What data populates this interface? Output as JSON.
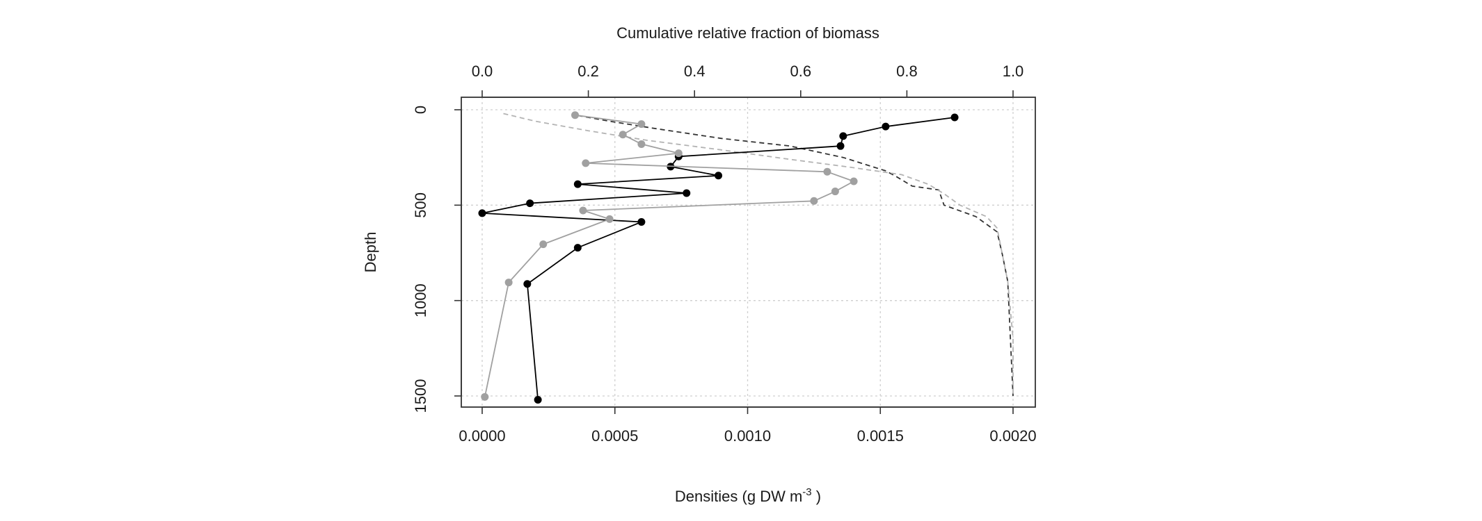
{
  "chart_data": {
    "type": "line",
    "title": "",
    "top_xlabel": "Cumulative relative fraction of biomass",
    "xlabel": "Densities (g DW  m",
    "xlabel_sup": "-3",
    "xlabel_end": " )",
    "ylabel": "Depth",
    "xlim": [
      0,
      0.002
    ],
    "ylim_reversed": [
      0,
      1500
    ],
    "top_xlim": [
      0,
      1
    ],
    "grid": true,
    "x_ticks": [
      {
        "value": 0.0,
        "label": "0.0000"
      },
      {
        "value": 0.0005,
        "label": "0.0005"
      },
      {
        "value": 0.001,
        "label": "0.0010"
      },
      {
        "value": 0.0015,
        "label": "0.0015"
      },
      {
        "value": 0.002,
        "label": "0.0020"
      }
    ],
    "top_ticks": [
      {
        "value": 0.0,
        "label": "0.0"
      },
      {
        "value": 0.2,
        "label": "0.2"
      },
      {
        "value": 0.4,
        "label": "0.4"
      },
      {
        "value": 0.6,
        "label": "0.6"
      },
      {
        "value": 0.8,
        "label": "0.8"
      },
      {
        "value": 1.0,
        "label": "1.0"
      }
    ],
    "y_ticks": [
      {
        "value": 0,
        "label": "0"
      },
      {
        "value": 500,
        "label": "500"
      },
      {
        "value": 1000,
        "label": "1000"
      },
      {
        "value": 1500,
        "label": "1500"
      }
    ],
    "series": [
      {
        "style": "solid-points",
        "color": "#000000",
        "points": [
          [
            0.00178,
            40
          ],
          [
            0.00152,
            88
          ],
          [
            0.00136,
            138
          ],
          [
            0.00135,
            190
          ],
          [
            0.00074,
            245
          ],
          [
            0.00071,
            298
          ],
          [
            0.00089,
            345
          ],
          [
            0.00036,
            390
          ],
          [
            0.00077,
            437
          ],
          [
            0.00018,
            490
          ],
          [
            0.0,
            542
          ],
          [
            0.0006,
            588
          ],
          [
            0.00036,
            723
          ],
          [
            0.00017,
            913
          ],
          [
            0.00021,
            1520
          ]
        ]
      },
      {
        "style": "solid-points",
        "color": "#a0a0a0",
        "points": [
          [
            0.00035,
            28
          ],
          [
            0.0006,
            75
          ],
          [
            0.00053,
            130
          ],
          [
            0.0006,
            180
          ],
          [
            0.00074,
            228
          ],
          [
            0.00039,
            280
          ],
          [
            0.0013,
            325
          ],
          [
            0.0014,
            375
          ],
          [
            0.00133,
            428
          ],
          [
            0.00125,
            478
          ],
          [
            0.00038,
            528
          ],
          [
            0.00048,
            573
          ],
          [
            0.00023,
            705
          ],
          [
            0.0001,
            905
          ],
          [
            1e-05,
            1505
          ]
        ]
      },
      {
        "style": "dashed",
        "color": "#333333",
        "scale": "top",
        "points": [
          [
            0.18,
            30
          ],
          [
            0.24,
            60
          ],
          [
            0.33,
            100
          ],
          [
            0.45,
            150
          ],
          [
            0.58,
            190
          ],
          [
            0.68,
            250
          ],
          [
            0.76,
            320
          ],
          [
            0.78,
            350
          ],
          [
            0.81,
            400
          ],
          [
            0.86,
            420
          ],
          [
            0.87,
            500
          ],
          [
            0.93,
            560
          ],
          [
            0.97,
            640
          ],
          [
            0.98,
            760
          ],
          [
            0.99,
            900
          ],
          [
            0.995,
            1200
          ],
          [
            1.0,
            1500
          ]
        ]
      },
      {
        "style": "dashed",
        "color": "#b3b3b3",
        "scale": "top",
        "points": [
          [
            0.04,
            20
          ],
          [
            0.1,
            60
          ],
          [
            0.2,
            110
          ],
          [
            0.31,
            160
          ],
          [
            0.45,
            210
          ],
          [
            0.58,
            260
          ],
          [
            0.69,
            300
          ],
          [
            0.79,
            340
          ],
          [
            0.84,
            390
          ],
          [
            0.87,
            440
          ],
          [
            0.9,
            500
          ],
          [
            0.95,
            560
          ],
          [
            0.97,
            620
          ],
          [
            0.98,
            760
          ],
          [
            0.99,
            900
          ],
          [
            1.0,
            1200
          ],
          [
            1.0,
            1500
          ]
        ]
      }
    ]
  }
}
